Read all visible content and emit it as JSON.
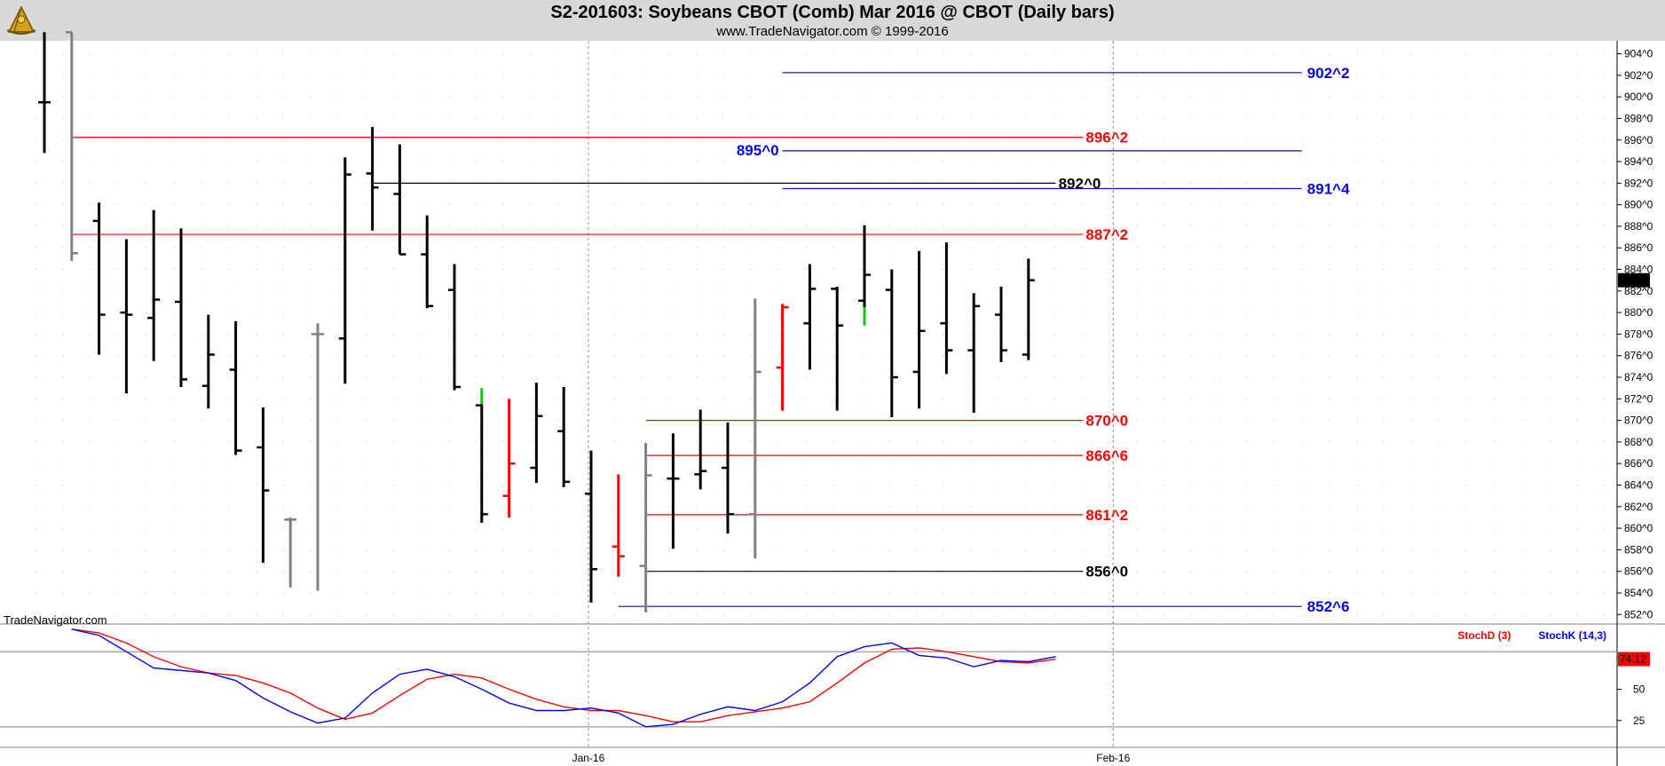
{
  "header": {
    "title": "S2-201603:  Soybeans CBOT (Comb) Mar 2016 @ CBOT  (Daily bars)",
    "subtitle": "www.TradeNavigator.com © 1999-2016"
  },
  "watermark": "TradeNavigator.com",
  "colors": {
    "up_bar": "#000000",
    "inside_bar": "#808080",
    "red_bar": "#ff0000",
    "green_tick": "#00cc00",
    "blue_level": "#0000ff",
    "red_level": "#ff0000",
    "black_level": "#000000",
    "stoch_d": "#ff0000",
    "stoch_k": "#0000ff"
  },
  "chart_data": [
    {
      "type": "ohlc",
      "title": "S2-201603:  Soybeans CBOT (Comb) Mar 2016 @ CBOT  (Daily bars)",
      "y_ticks": [
        "904^0",
        "902^0",
        "900^0",
        "898^0",
        "896^0",
        "894^0",
        "892^0",
        "890^0",
        "888^0",
        "886^0",
        "884^0",
        "882^0",
        "880^0",
        "878^0",
        "876^0",
        "874^0",
        "872^0",
        "870^0",
        "868^0",
        "866^0",
        "864^0",
        "862^0",
        "860^0",
        "858^0",
        "856^0",
        "854^0",
        "852^0"
      ],
      "ylim": [
        851.2,
        905.2
      ],
      "x_ticks": [
        {
          "label": "Jan-16",
          "bar": 19.9
        },
        {
          "label": "Feb-16",
          "bar": 39.1
        }
      ],
      "last_price": "883^0",
      "bars": [
        {
          "o": 899.5,
          "h": 906,
          "l": 894.8,
          "c": 899.5,
          "color": "black"
        },
        {
          "o": 906,
          "h": 906,
          "l": 884.8,
          "c": 885.5,
          "color": "gray"
        },
        {
          "o": 888.5,
          "h": 890.2,
          "l": 876.1,
          "c": 879.8,
          "color": "black"
        },
        {
          "o": 880,
          "h": 886.8,
          "l": 872.5,
          "c": 879.8,
          "color": "black"
        },
        {
          "o": 879.5,
          "h": 889.5,
          "l": 875.5,
          "c": 881.2,
          "color": "black"
        },
        {
          "o": 881,
          "h": 887.8,
          "l": 873.1,
          "c": 873.8,
          "color": "black"
        },
        {
          "o": 873.2,
          "h": 879.8,
          "l": 871.1,
          "c": 876.1,
          "color": "black"
        },
        {
          "o": 874.7,
          "h": 879.2,
          "l": 866.8,
          "c": 867.2,
          "color": "black"
        },
        {
          "o": 867.5,
          "h": 871.2,
          "l": 856.8,
          "c": 863.5,
          "color": "black"
        },
        {
          "o": 860.8,
          "h": 861,
          "l": 854.5,
          "c": 860.8,
          "color": "gray"
        },
        {
          "o": 878,
          "h": 879,
          "l": 854.2,
          "c": 878,
          "color": "gray"
        },
        {
          "o": 877.6,
          "h": 894.4,
          "l": 873.4,
          "c": 892.8,
          "color": "black"
        },
        {
          "o": 892.9,
          "h": 897.2,
          "l": 887.6,
          "c": 891.6,
          "color": "black"
        },
        {
          "o": 891,
          "h": 895.6,
          "l": 885.4,
          "c": 885.4,
          "color": "black"
        },
        {
          "o": 885.4,
          "h": 889,
          "l": 880.4,
          "c": 880.6,
          "color": "black"
        },
        {
          "o": 882.1,
          "h": 884.5,
          "l": 872.8,
          "c": 873.1,
          "color": "black"
        },
        {
          "o": 871.4,
          "h": 871.5,
          "l": 860.5,
          "c": 861.3,
          "color": "black",
          "green_top": [
            871.5,
            873
          ]
        },
        {
          "o": 863,
          "h": 872,
          "l": 861,
          "c": 866,
          "color": "red"
        },
        {
          "o": 865.6,
          "h": 873.5,
          "l": 864.2,
          "c": 870.4,
          "color": "black"
        },
        {
          "o": 869,
          "h": 873.1,
          "l": 863.8,
          "c": 864.3,
          "color": "black"
        },
        {
          "o": 863.2,
          "h": 867.2,
          "l": 853.1,
          "c": 856.2,
          "color": "black"
        },
        {
          "o": 858.3,
          "h": 865,
          "l": 855.5,
          "c": 857.4,
          "color": "red"
        },
        {
          "o": 856.5,
          "h": 867.9,
          "l": 852.2,
          "c": 864.9,
          "color": "gray"
        },
        {
          "o": 864.6,
          "h": 868.8,
          "l": 858.1,
          "c": 864.6,
          "color": "black"
        },
        {
          "o": 865,
          "h": 871,
          "l": 863.6,
          "c": 865.3,
          "color": "black"
        },
        {
          "o": 865.6,
          "h": 869.8,
          "l": 859.5,
          "c": 861.3,
          "color": "black"
        },
        {
          "o": 861.3,
          "h": 881.3,
          "l": 857.2,
          "c": 874.5,
          "color": "gray"
        },
        {
          "o": 874.9,
          "h": 880.8,
          "l": 870.9,
          "c": 880.5,
          "color": "red"
        },
        {
          "o": 879,
          "h": 884.5,
          "l": 874.7,
          "c": 882.2,
          "color": "black"
        },
        {
          "o": 882.2,
          "h": 882.4,
          "l": 870.9,
          "c": 878.8,
          "color": "black"
        },
        {
          "o": 881.1,
          "h": 888.1,
          "l": 880.5,
          "c": 883.5,
          "color": "black",
          "green_bottom": [
            878.8,
            880.5
          ]
        },
        {
          "o": 882.1,
          "h": 884,
          "l": 870.3,
          "c": 874,
          "color": "black"
        },
        {
          "o": 874.5,
          "h": 885.7,
          "l": 871.1,
          "c": 878.3,
          "color": "black"
        },
        {
          "o": 879,
          "h": 886.5,
          "l": 874.3,
          "c": 876.5,
          "color": "black"
        },
        {
          "o": 876.5,
          "h": 881.8,
          "l": 870.7,
          "c": 880.6,
          "color": "black"
        },
        {
          "o": 879.8,
          "h": 882.4,
          "l": 875.4,
          "c": 876.5,
          "color": "black"
        },
        {
          "o": 876.1,
          "h": 885,
          "l": 875.6,
          "c": 883,
          "color": "black"
        }
      ],
      "levels": [
        {
          "label": "902^2",
          "price": 902.25,
          "color": "blue",
          "from_bar": 27,
          "to_bar": 46,
          "label_side": "right"
        },
        {
          "label": "896^2",
          "price": 896.25,
          "color": "red",
          "from_bar": 1,
          "to_bar": 38,
          "label_side": "right"
        },
        {
          "label": "895^0",
          "price": 895.0,
          "color": "blue",
          "from_bar": 27,
          "to_bar": 46,
          "label_side": "left"
        },
        {
          "label": "892^0",
          "price": 892.0,
          "color": "black",
          "from_bar": 12,
          "to_bar": 37,
          "label_side": "right"
        },
        {
          "label": "891^4",
          "price": 891.5,
          "color": "blue",
          "from_bar": 27,
          "to_bar": 46,
          "label_side": "right"
        },
        {
          "label": "887^2",
          "price": 887.25,
          "color": "red",
          "from_bar": 1,
          "to_bar": 38,
          "label_side": "right"
        },
        {
          "label": "870^0",
          "price": 870.0,
          "color": "red",
          "from_bar": 22,
          "to_bar": 38,
          "label_side": "right"
        },
        {
          "label": "866^6",
          "price": 866.75,
          "color": "red",
          "from_bar": 22,
          "to_bar": 38,
          "label_side": "right"
        },
        {
          "label": "861^2",
          "price": 861.25,
          "color": "red",
          "from_bar": 22,
          "to_bar": 38,
          "label_side": "right"
        },
        {
          "label": "856^0",
          "price": 856.0,
          "color": "black",
          "from_bar": 22,
          "to_bar": 38,
          "label_side": "right"
        },
        {
          "label": "852^6",
          "price": 852.75,
          "color": "blue",
          "from_bar": 21,
          "to_bar": 46,
          "label_side": "right"
        }
      ]
    },
    {
      "type": "line",
      "legend": [
        {
          "name": "StochD (3)",
          "color": "red"
        },
        {
          "name": "StochK (14,3)",
          "color": "blue"
        }
      ],
      "y_ticks": [
        "75",
        "50",
        "25"
      ],
      "ylim": [
        5,
        100
      ],
      "reference_lines": [
        80,
        20
      ],
      "last_value": "74.12",
      "series": [
        {
          "name": "StochK (14,3)",
          "values": [
            null,
            98,
            93,
            80,
            67,
            65,
            63,
            57,
            43,
            32,
            23,
            27,
            47,
            62,
            66,
            60,
            50,
            39,
            33,
            33,
            35,
            31,
            20,
            22,
            30,
            36,
            33,
            40,
            55,
            76,
            84,
            87,
            77,
            75,
            68,
            73,
            72,
            76
          ]
        },
        {
          "name": "StochD (3)",
          "values": [
            null,
            98,
            95,
            87,
            76,
            68,
            63,
            61,
            55,
            47,
            35,
            26,
            31,
            45,
            58,
            62,
            59,
            50,
            42,
            36,
            33,
            33,
            29,
            24,
            24,
            29,
            32,
            35,
            40,
            55,
            71,
            82,
            83,
            80,
            76,
            72,
            71,
            74
          ]
        }
      ]
    }
  ]
}
